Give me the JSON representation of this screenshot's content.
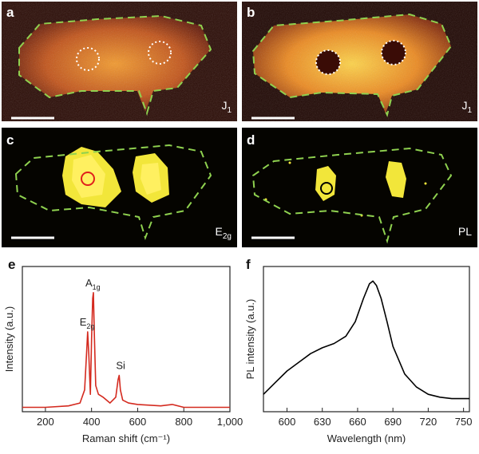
{
  "panels": [
    {
      "id": "a",
      "letter": "a",
      "map_label": "J",
      "map_sub": "1",
      "style": "orange-dim"
    },
    {
      "id": "b",
      "letter": "b",
      "map_label": "J",
      "map_sub": "1",
      "style": "orange-bright"
    },
    {
      "id": "c",
      "letter": "c",
      "map_label": "E",
      "map_sub": "2g",
      "style": "yellow-dark"
    },
    {
      "id": "d",
      "letter": "d",
      "map_label": "PL",
      "map_sub": "",
      "style": "yellow-dark"
    }
  ],
  "colors": {
    "outline": "#8fd14f",
    "spectrum_raman": "#d42a1f",
    "spectrum_pl": "#000000",
    "marker_c": "#e0201c",
    "marker_d": "#000000"
  },
  "chart_data": [
    {
      "type": "line",
      "panel": "e",
      "xlabel": "Raman shift (cm⁻¹)",
      "ylabel": "Intensity (a.u.)",
      "xlim": [
        100,
        1000
      ],
      "xticks": [
        "200",
        "400",
        "600",
        "800",
        "1,000"
      ],
      "xtick_values": [
        200,
        400,
        600,
        800,
        1000
      ],
      "annotations": [
        {
          "text": "E",
          "sub": "2g",
          "x": 383
        },
        {
          "text": "A",
          "sub": "1g",
          "x": 408
        },
        {
          "text": "Si",
          "sub": "",
          "x": 520
        }
      ],
      "series": [
        {
          "x": [
            100,
            200,
            300,
            350,
            370,
            380,
            383,
            388,
            395,
            400,
            405,
            408,
            412,
            418,
            430,
            450,
            480,
            505,
            515,
            520,
            525,
            535,
            560,
            600,
            700,
            750,
            800,
            900,
            1000
          ],
          "y": [
            0.03,
            0.03,
            0.04,
            0.06,
            0.15,
            0.45,
            0.55,
            0.4,
            0.12,
            0.5,
            0.78,
            0.82,
            0.55,
            0.18,
            0.12,
            0.1,
            0.06,
            0.1,
            0.22,
            0.25,
            0.15,
            0.08,
            0.06,
            0.05,
            0.04,
            0.05,
            0.03,
            0.03,
            0.03
          ]
        }
      ]
    },
    {
      "type": "line",
      "panel": "f",
      "xlabel": "Wavelength (nm)",
      "ylabel": "PL intensity (a.u.)",
      "xlim": [
        580,
        755
      ],
      "xticks": [
        "600",
        "630",
        "660",
        "690",
        "720",
        "750"
      ],
      "xtick_values": [
        600,
        630,
        660,
        690,
        720,
        750
      ],
      "series": [
        {
          "x": [
            580,
            590,
            600,
            610,
            620,
            630,
            640,
            650,
            658,
            665,
            670,
            673,
            676,
            680,
            685,
            690,
            700,
            710,
            720,
            730,
            740,
            750,
            755
          ],
          "y": [
            0.12,
            0.2,
            0.28,
            0.34,
            0.4,
            0.44,
            0.47,
            0.52,
            0.62,
            0.78,
            0.88,
            0.9,
            0.87,
            0.78,
            0.62,
            0.45,
            0.26,
            0.17,
            0.12,
            0.1,
            0.09,
            0.09,
            0.09
          ]
        }
      ]
    }
  ]
}
